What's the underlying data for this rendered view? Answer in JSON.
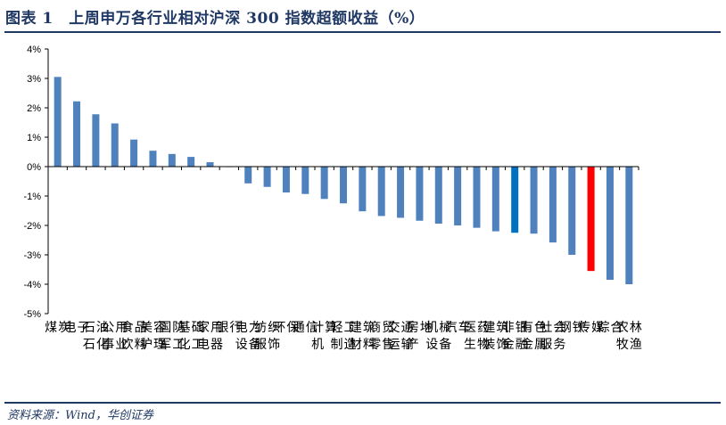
{
  "title": "图表 1　上周申万各行业相对沪深 300 指数超额收益（%）",
  "source": "资料来源：Wind，华创证券",
  "colors": {
    "default": "#4f81bd",
    "highlight_blue": "#0070c0",
    "highlight_red": "#ff0000",
    "title": "#1f3864"
  },
  "chart_data": {
    "type": "bar",
    "title": "上周申万各行业相对沪深 300 指数超额收益（%）",
    "xlabel": "",
    "ylabel": "",
    "ylim": [
      -5,
      4
    ],
    "yticks": [
      "4%",
      "3%",
      "2%",
      "1%",
      "0%",
      "-1%",
      "-2%",
      "-3%",
      "-4%",
      "-5%"
    ],
    "grid": false,
    "categories": [
      "煤炭",
      "电子",
      "石油石化",
      "公用事业",
      "食品饮料",
      "美容护理",
      "国防军工",
      "基础化工",
      "家用电器",
      "银行",
      "电力设备",
      "纺织服饰",
      "环保",
      "通信",
      "计算机",
      "轻工制造",
      "建筑材料",
      "商贸零售",
      "交通运输",
      "房地产",
      "机械设备",
      "汽车",
      "医药生物",
      "建筑装饰",
      "非银金融",
      "有色金属",
      "社会服务",
      "钢铁",
      "传媒",
      "综合",
      "农林牧渔"
    ],
    "values": [
      3.05,
      2.22,
      1.78,
      1.47,
      0.92,
      0.54,
      0.43,
      0.33,
      0.15,
      0.0,
      -0.57,
      -0.69,
      -0.88,
      -0.93,
      -1.1,
      -1.25,
      -1.52,
      -1.68,
      -1.74,
      -1.84,
      -1.94,
      -2.0,
      -2.08,
      -2.2,
      -2.25,
      -2.28,
      -2.58,
      -3.0,
      -3.55,
      -3.85,
      -4.0
    ],
    "highlight": {
      "非银金融": "#0070c0",
      "传媒": "#ff0000"
    }
  }
}
